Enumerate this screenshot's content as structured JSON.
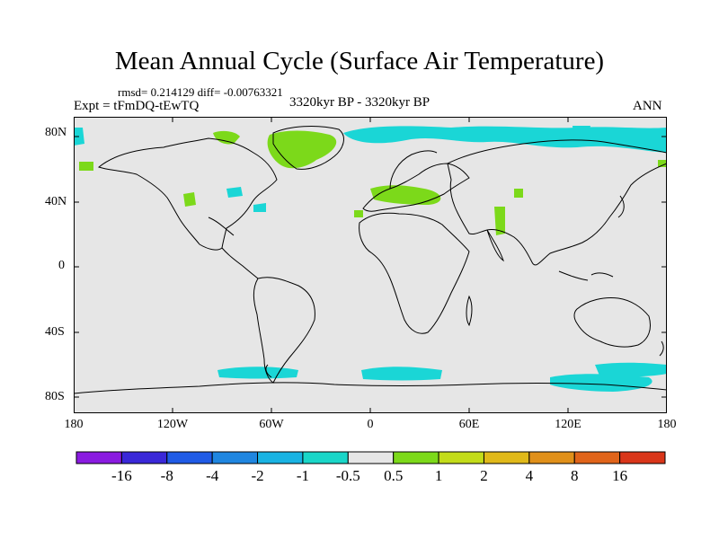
{
  "title": "Mean Annual Cycle (Surface Air Temperature)",
  "stats_line": "rmsd= 0.214129 diff= -0.00763321",
  "experiment": "Expt = tFmDQ-tEwTQ",
  "period": "3320kyr BP - 3320kyr BP",
  "season": "ANN",
  "lat_labels": [
    "80N",
    "40N",
    "0",
    "40S",
    "80S"
  ],
  "lon_labels": [
    "180",
    "120W",
    "60W",
    "0",
    "60E",
    "120E",
    "180"
  ],
  "colorbar": {
    "labels": [
      "-16",
      "-8",
      "-4",
      "-2",
      "-1",
      "-0.5",
      "0.5",
      "1",
      "2",
      "4",
      "8",
      "16"
    ],
    "colors": [
      "#8a1be0",
      "#3a28d8",
      "#1f5be6",
      "#1f86e0",
      "#19b3e3",
      "#1ad6c8",
      "#e6e6e6",
      "#7cd91a",
      "#c3dc1a",
      "#e0b91a",
      "#e0901a",
      "#e0641a",
      "#d9361a"
    ]
  },
  "colors": {
    "ocean_land": "#e6e6e6",
    "coast": "#000000",
    "cool": "#1ad6d6",
    "warm": "#7cd91a",
    "warm_light": "#c3dc1a"
  }
}
